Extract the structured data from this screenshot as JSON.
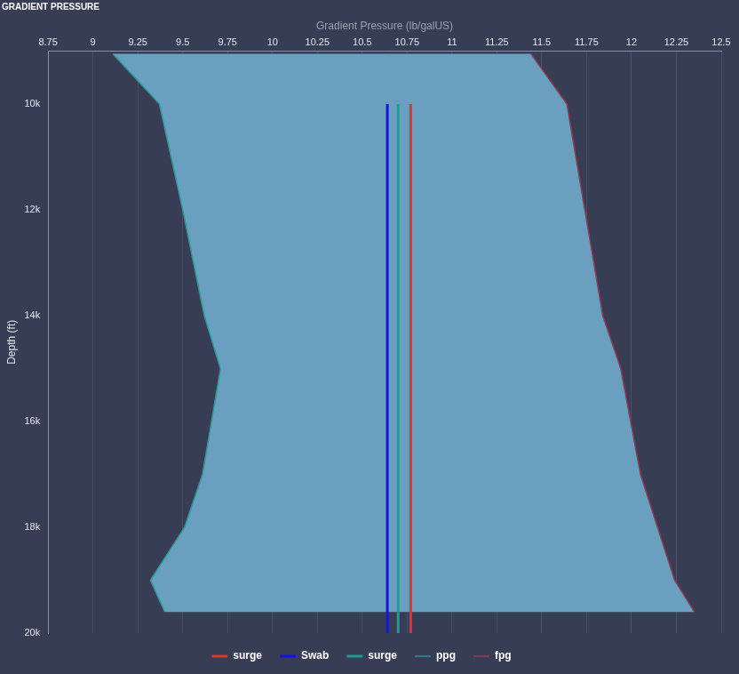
{
  "chart_data": {
    "type": "line",
    "title": "GRADIENT PRESSURE",
    "x_label": "Gradient Pressure (lb/galUS)",
    "y_label": "Depth (ft)",
    "xlim": [
      8.75,
      12.5
    ],
    "xticks": [
      8.75,
      9,
      9.25,
      9.5,
      9.75,
      10,
      10.25,
      10.5,
      10.75,
      11,
      11.25,
      11.5,
      11.75,
      12,
      12.25,
      12.5
    ],
    "ylim": [
      20000,
      9000
    ],
    "yticks": [
      {
        "value": 10000,
        "label": "10k"
      },
      {
        "value": 12000,
        "label": "12k"
      },
      {
        "value": 14000,
        "label": "14k"
      },
      {
        "value": 16000,
        "label": "16k"
      },
      {
        "value": 18000,
        "label": "18k"
      },
      {
        "value": 20000,
        "label": "20k"
      }
    ],
    "grid": "x",
    "legend": "bottom",
    "series": [
      {
        "name": "surge",
        "color": "#e0342c",
        "x": [
          10.77,
          10.77
        ],
        "values": [
          10000,
          20000
        ]
      },
      {
        "name": "Swab",
        "color": "#1414e6",
        "x": [
          10.64,
          10.64
        ],
        "values": [
          10000,
          20000
        ]
      },
      {
        "name": "surge",
        "color": "#1f9a96",
        "x": [
          10.7,
          10.7
        ],
        "values": [
          10000,
          20000
        ]
      },
      {
        "name": "ppg",
        "color": "#1f9a96",
        "x": [
          9.11,
          9.37,
          9.5,
          9.62,
          9.71,
          9.61,
          9.51,
          9.32,
          9.4
        ],
        "values": [
          9050,
          10000,
          12000,
          14000,
          15000,
          17000,
          18000,
          19000,
          19600
        ]
      },
      {
        "name": "fpg",
        "color": "#9b3b4e",
        "x": [
          11.44,
          11.64,
          11.74,
          11.84,
          11.94,
          12.05,
          12.24,
          12.35
        ],
        "values": [
          9050,
          10000,
          12000,
          14000,
          15000,
          17000,
          19000,
          19600
        ]
      }
    ]
  }
}
